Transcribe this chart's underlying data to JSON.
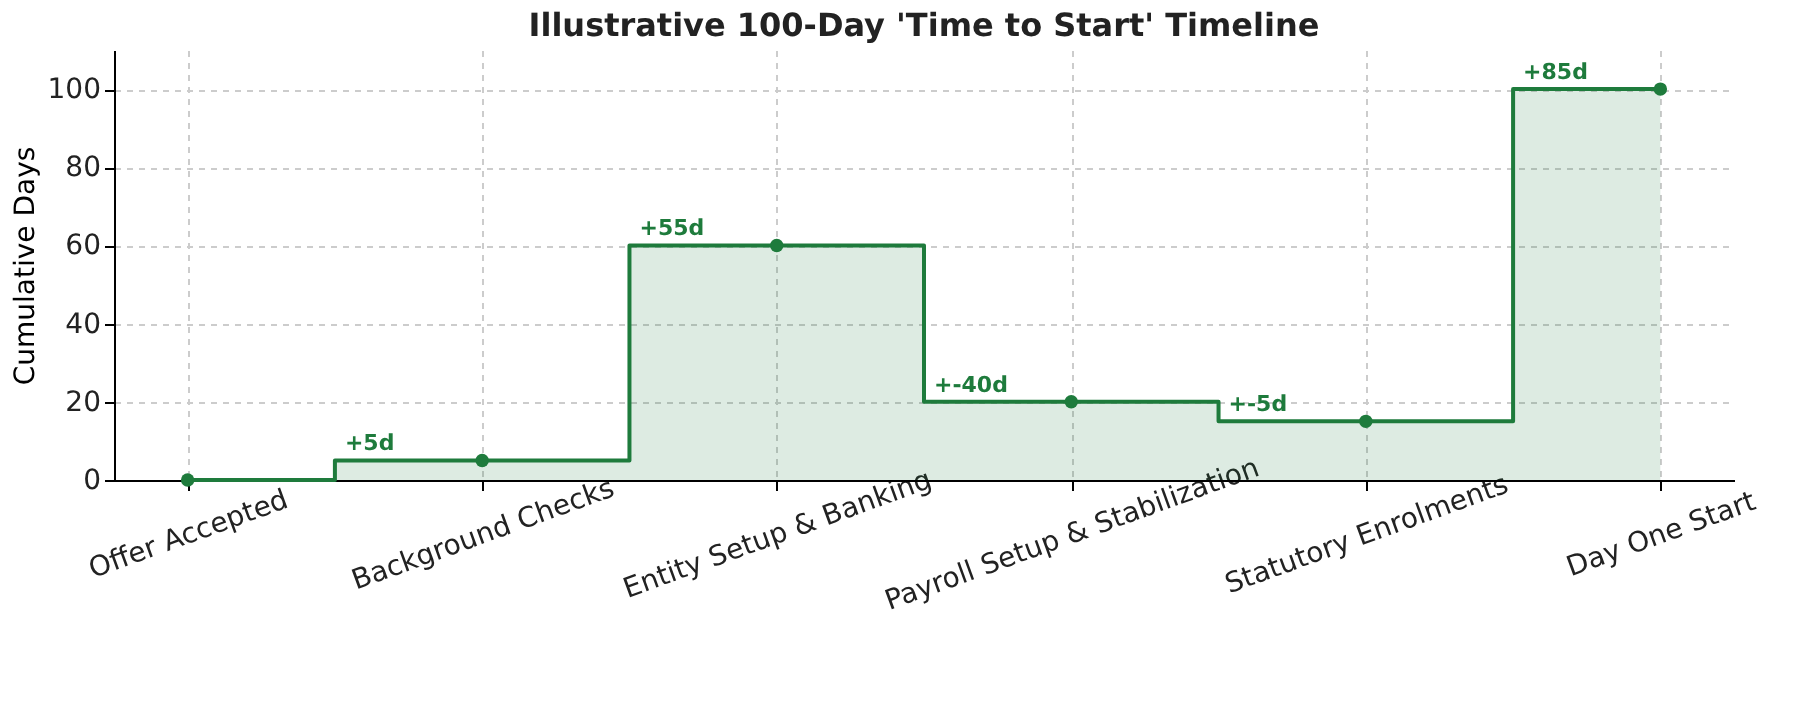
{
  "chart_data": {
    "type": "step",
    "title": "Illustrative 100-Day 'Time to Start' Timeline",
    "ylabel": "Cumulative Days",
    "categories": [
      "Offer Accepted",
      "Background Checks",
      "Entity Setup & Banking",
      "Payroll Setup & Stabilization",
      "Statutory Enrolments",
      "Day One Start"
    ],
    "series": [
      {
        "color": "#1e7b3c",
        "values": [
          0,
          5,
          60,
          20,
          15,
          100
        ]
      }
    ],
    "annotations": [
      "+5d",
      "+55d",
      "+-40d",
      "+-5d",
      "+85d"
    ],
    "ylim": [
      0,
      110
    ],
    "yticks": [
      0,
      20,
      40,
      60,
      80,
      100
    ],
    "grid": true,
    "marker": "circle",
    "line_style": "solid"
  }
}
